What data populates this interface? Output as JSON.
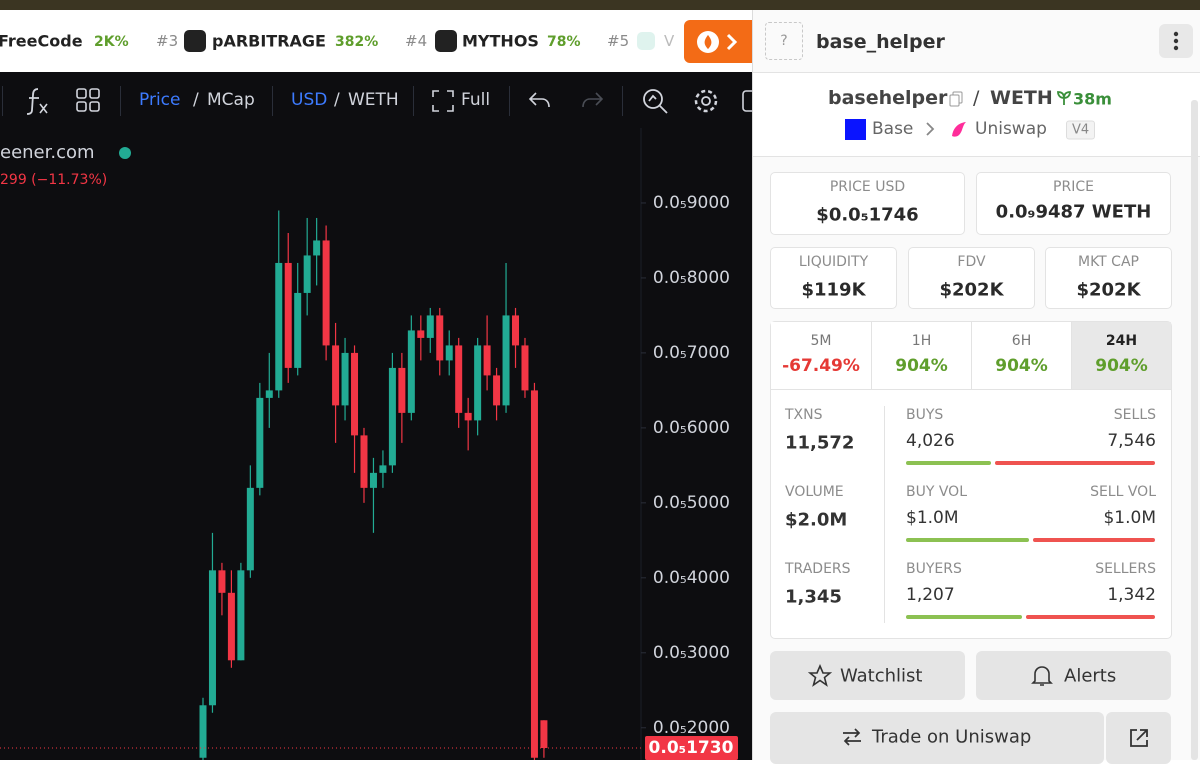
{
  "ticker": {
    "items": [
      {
        "name": "FreeCode",
        "change": "2K%"
      },
      {
        "rank": "#3",
        "name": "pARBITRAGE",
        "change": "382%"
      },
      {
        "rank": "#4",
        "name": "MYTHOS",
        "change": "78%"
      },
      {
        "rank": "#5",
        "name": "V"
      }
    ]
  },
  "toolbar": {
    "price": "Price",
    "mcap": "MCap",
    "usd": "USD",
    "weth": "WETH",
    "separator": "/",
    "full": "Full"
  },
  "chart_header": {
    "source": "eener.com",
    "change": "299 (−11.73%)"
  },
  "chart_data": {
    "type": "candlestick",
    "open": [
      1.6e-06,
      2.3e-06,
      4.1e-06,
      3.8e-06,
      2.9e-06,
      4.1e-06,
      5.2e-06,
      6.4e-06,
      6.5e-06,
      8.2e-06,
      6.8e-06,
      7.8e-06,
      8.3e-06,
      8.5e-06,
      7.1e-06,
      6.3e-06,
      7e-06,
      5.9e-06,
      5.2e-06,
      5.4e-06,
      5.5e-06,
      6.8e-06,
      6.2e-06,
      7.3e-06,
      7.2e-06,
      7.5e-06,
      6.9e-06,
      7.1e-06,
      6.2e-06,
      6.1e-06,
      7.1e-06,
      6.7e-06,
      6.3e-06,
      7.5e-06,
      7.1e-06,
      6.5e-06,
      2.1e-06
    ],
    "high": [
      2.4e-06,
      4.6e-06,
      4.2e-06,
      4.1e-06,
      4.2e-06,
      5.5e-06,
      6.6e-06,
      7e-06,
      8.9e-06,
      8.6e-06,
      8.2e-06,
      8.8e-06,
      8.8e-06,
      8.7e-06,
      7.4e-06,
      7.2e-06,
      7.1e-06,
      6e-06,
      5.6e-06,
      5.7e-06,
      7e-06,
      7e-06,
      7.5e-06,
      7.5e-06,
      7.6e-06,
      7.6e-06,
      7.3e-06,
      7.2e-06,
      6.4e-06,
      7.2e-06,
      7.5e-06,
      6.8e-06,
      8.2e-06,
      7.6e-06,
      7.2e-06,
      6.6e-06,
      2.1e-06
    ],
    "low": [
      1.57e-06,
      2.2e-06,
      3.5e-06,
      2.8e-06,
      2.9e-06,
      4e-06,
      5.1e-06,
      6e-06,
      6.4e-06,
      6.6e-06,
      6.7e-06,
      7.5e-06,
      7.9e-06,
      6.9e-06,
      5.8e-06,
      6.1e-06,
      5.4e-06,
      5e-06,
      4.6e-06,
      5.2e-06,
      5.4e-06,
      5.8e-06,
      6.1e-06,
      6.9e-06,
      7e-06,
      6.7e-06,
      6.7e-06,
      6e-06,
      5.7e-06,
      5.9e-06,
      6.5e-06,
      6.1e-06,
      6.2e-06,
      6.8e-06,
      6.4e-06,
      1.57e-06,
      1.6e-06
    ],
    "close": [
      2.3e-06,
      4.1e-06,
      3.8e-06,
      2.9e-06,
      4.1e-06,
      5.2e-06,
      6.4e-06,
      6.5e-06,
      8.2e-06,
      6.8e-06,
      7.8e-06,
      8.3e-06,
      8.5e-06,
      7.1e-06,
      6.3e-06,
      7e-06,
      5.9e-06,
      5.2e-06,
      5.4e-06,
      5.5e-06,
      6.8e-06,
      6.2e-06,
      7.3e-06,
      7.2e-06,
      7.5e-06,
      6.9e-06,
      7.1e-06,
      6.2e-06,
      6.1e-06,
      7.1e-06,
      6.7e-06,
      6.3e-06,
      7.5e-06,
      7.1e-06,
      6.5e-06,
      1.6e-06,
      1.73e-06
    ],
    "up_color": "#22ab94",
    "down_color": "#f23645",
    "ylim": [
      1.57e-06,
      1e-05
    ],
    "yticks": [
      {
        "value": 9e-06,
        "label": "0.0₅9000"
      },
      {
        "value": 8e-06,
        "label": "0.0₅8000"
      },
      {
        "value": 7e-06,
        "label": "0.0₅7000"
      },
      {
        "value": 6e-06,
        "label": "0.0₅6000"
      },
      {
        "value": 5e-06,
        "label": "0.0₅5000"
      },
      {
        "value": 4e-06,
        "label": "0.0₅4000"
      },
      {
        "value": 3e-06,
        "label": "0.0₅3000"
      },
      {
        "value": 2e-06,
        "label": "0.0₅2000"
      }
    ],
    "last_price": {
      "value": 1.73e-06,
      "label": "0.0₅1730"
    }
  },
  "panel": {
    "header": {
      "help": "?",
      "title": "base_helper"
    },
    "pair": {
      "base": "basehelper",
      "separator": "/",
      "quote": "WETH",
      "age": "38m",
      "chain": "Base",
      "dex": "Uniswap",
      "version": "V4"
    },
    "metrics": [
      {
        "label": "PRICE USD",
        "value": "$0.0₅1746"
      },
      {
        "label": "PRICE",
        "value": "0.0₉9487 WETH"
      },
      {
        "label": "LIQUIDITY",
        "value": "$119K"
      },
      {
        "label": "FDV",
        "value": "$202K"
      },
      {
        "label": "MKT CAP",
        "value": "$202K"
      }
    ],
    "periods": [
      {
        "label": "5M",
        "change": "-67.49%"
      },
      {
        "label": "1H",
        "change": "904%"
      },
      {
        "label": "6H",
        "change": "904%"
      },
      {
        "label": "24H",
        "change": "904%",
        "selected": true
      }
    ],
    "stats": [
      {
        "total": {
          "label": "TXNS",
          "value": "11,572"
        },
        "left": {
          "label": "BUYS",
          "value": "4,026"
        },
        "right": {
          "label": "SELLS",
          "value": "7,546"
        }
      },
      {
        "total": {
          "label": "VOLUME",
          "value": "$2.0M"
        },
        "left": {
          "label": "BUY VOL",
          "value": "$1.0M"
        },
        "right": {
          "label": "SELL VOL",
          "value": "$1.0M"
        }
      },
      {
        "total": {
          "label": "TRADERS",
          "value": "1,345"
        },
        "left": {
          "label": "BUYERS",
          "value": "1,207"
        },
        "right": {
          "label": "SELLERS",
          "value": "1,342"
        }
      }
    ],
    "buttons": {
      "watchlist": "Watchlist",
      "alerts": "Alerts",
      "trade": "Trade on Uniswap"
    }
  }
}
